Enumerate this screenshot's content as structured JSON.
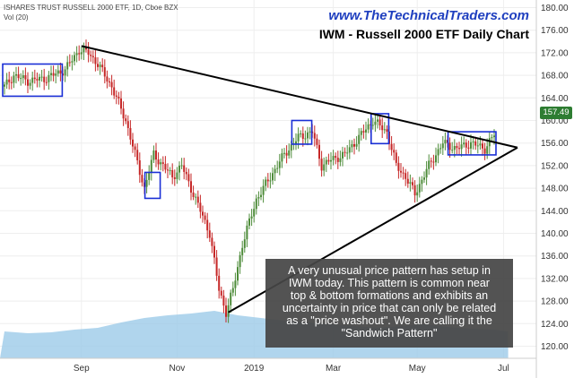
{
  "header": {
    "instrument": "ISHARES TRUST RUSSELL 2000 ETF, 1D, Cboe BZX",
    "volume_label": "Vol (20)",
    "watermark": "www.TheTechnicalTraders.com",
    "title": "IWM - Russell 2000 ETF Daily Chart"
  },
  "annotation": {
    "lines": [
      "A very unusual price pattern has setup in",
      "IWM today.  This pattern is common near",
      "top & bottom formations and exhibits an",
      "uncertainty in price that can only be related",
      "as a \"price washout\".  We are calling it the",
      "\"Sandwich Pattern\""
    ]
  },
  "colors": {
    "up": "#4e8c3a",
    "down": "#c62828",
    "box": "#1a2fd6",
    "trendline": "#000000",
    "volume": "#9ccbe8",
    "price_tag": "#2e7d32"
  },
  "chart_data": {
    "type": "candlestick",
    "title": "IWM - Russell 2000 ETF Daily Chart",
    "x_ticks": [
      "Sep",
      "Nov",
      "2019",
      "Mar",
      "May",
      "Jul"
    ],
    "y_ticks": [
      "180.00",
      "176.00",
      "172.00",
      "168.00",
      "164.00",
      "160.00",
      "156.00",
      "152.00",
      "148.00",
      "144.00",
      "140.00",
      "136.00",
      "132.00",
      "128.00",
      "124.00",
      "120.00"
    ],
    "ylim": [
      118,
      181
    ],
    "last_price": "157.49",
    "grid": true,
    "close_path": [
      {
        "x": 0,
        "y": 166
      },
      {
        "x": 4,
        "y": 168
      },
      {
        "x": 10,
        "y": 167
      },
      {
        "x": 18,
        "y": 167.5
      },
      {
        "x": 26,
        "y": 169
      },
      {
        "x": 32,
        "y": 172.5
      },
      {
        "x": 36,
        "y": 172
      },
      {
        "x": 40,
        "y": 170
      },
      {
        "x": 46,
        "y": 166
      },
      {
        "x": 52,
        "y": 160
      },
      {
        "x": 56,
        "y": 154
      },
      {
        "x": 60,
        "y": 148
      },
      {
        "x": 64,
        "y": 154
      },
      {
        "x": 68,
        "y": 152
      },
      {
        "x": 72,
        "y": 150
      },
      {
        "x": 76,
        "y": 152
      },
      {
        "x": 80,
        "y": 148
      },
      {
        "x": 84,
        "y": 144
      },
      {
        "x": 88,
        "y": 140
      },
      {
        "x": 92,
        "y": 130
      },
      {
        "x": 95,
        "y": 126
      },
      {
        "x": 98,
        "y": 130
      },
      {
        "x": 102,
        "y": 138
      },
      {
        "x": 108,
        "y": 146
      },
      {
        "x": 114,
        "y": 150
      },
      {
        "x": 120,
        "y": 154
      },
      {
        "x": 126,
        "y": 157
      },
      {
        "x": 132,
        "y": 158
      },
      {
        "x": 136,
        "y": 152
      },
      {
        "x": 140,
        "y": 153
      },
      {
        "x": 146,
        "y": 154
      },
      {
        "x": 152,
        "y": 157
      },
      {
        "x": 158,
        "y": 160
      },
      {
        "x": 164,
        "y": 158
      },
      {
        "x": 168,
        "y": 152
      },
      {
        "x": 172,
        "y": 150
      },
      {
        "x": 176,
        "y": 147
      },
      {
        "x": 182,
        "y": 152
      },
      {
        "x": 188,
        "y": 156
      },
      {
        "x": 194,
        "y": 155
      },
      {
        "x": 200,
        "y": 156
      },
      {
        "x": 206,
        "y": 155
      },
      {
        "x": 210,
        "y": 157.5
      }
    ],
    "trendlines": [
      {
        "name": "upper",
        "from": {
          "x": 33,
          "y": 173.2
        },
        "to": {
          "x": 220,
          "y": 155.2
        }
      },
      {
        "name": "lower",
        "from": {
          "x": 96,
          "y": 126
        },
        "to": {
          "x": 220,
          "y": 155.2
        }
      }
    ],
    "boxes": [
      {
        "x0": 0,
        "x1": 24,
        "y0": 164.3,
        "y1": 170
      },
      {
        "x0": 61,
        "x1": 66,
        "y0": 146.2,
        "y1": 150.8
      },
      {
        "x0": 124,
        "x1": 131,
        "y0": 155.8,
        "y1": 160
      },
      {
        "x0": 158,
        "x1": 164,
        "y0": 155.9,
        "y1": 161.2
      },
      {
        "x0": 191,
        "x1": 210,
        "y0": 153.9,
        "y1": 158
      }
    ]
  }
}
